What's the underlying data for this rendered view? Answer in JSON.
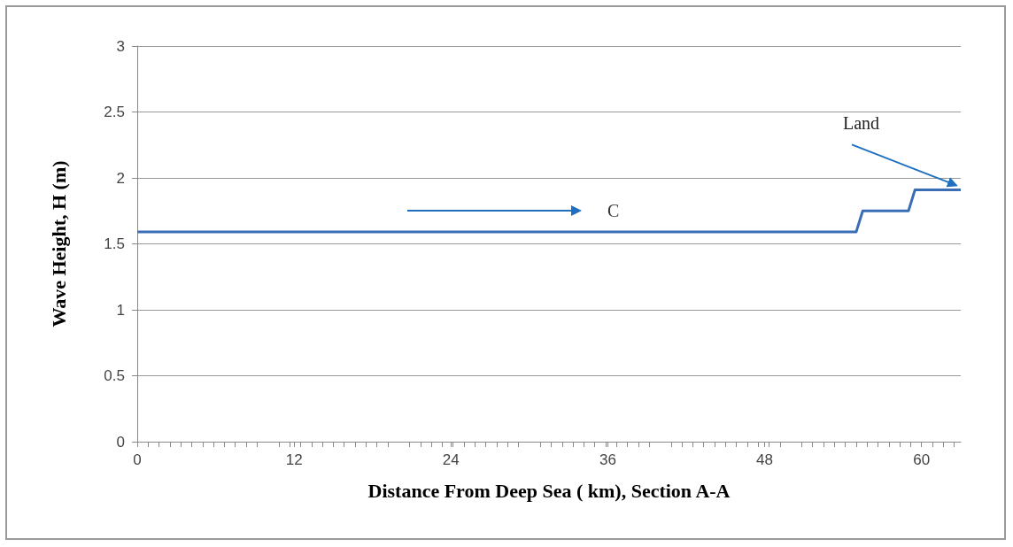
{
  "chart_data": {
    "type": "line",
    "xlabel": "Distance From Deep Sea ( km), Section A-A",
    "ylabel": "Wave Height, H (m)",
    "x": [
      0,
      55,
      55.5,
      59,
      59.5,
      63
    ],
    "series": [
      {
        "color": "#3b6db4",
        "values": [
          1.59,
          1.59,
          1.75,
          1.75,
          1.91,
          1.91
        ]
      }
    ],
    "xlim": [
      0,
      63
    ],
    "xticks": [
      0,
      12,
      24,
      36,
      48,
      60
    ],
    "ylim": [
      0,
      3
    ],
    "yticks": [
      0,
      0.5,
      1,
      1.5,
      2,
      2.5,
      3
    ],
    "grid": "y",
    "marker": "none",
    "line_style": "solid",
    "annotations": [
      "C",
      {
        "text": "Land",
        "x": 63,
        "y": 1.93
      }
    ]
  }
}
